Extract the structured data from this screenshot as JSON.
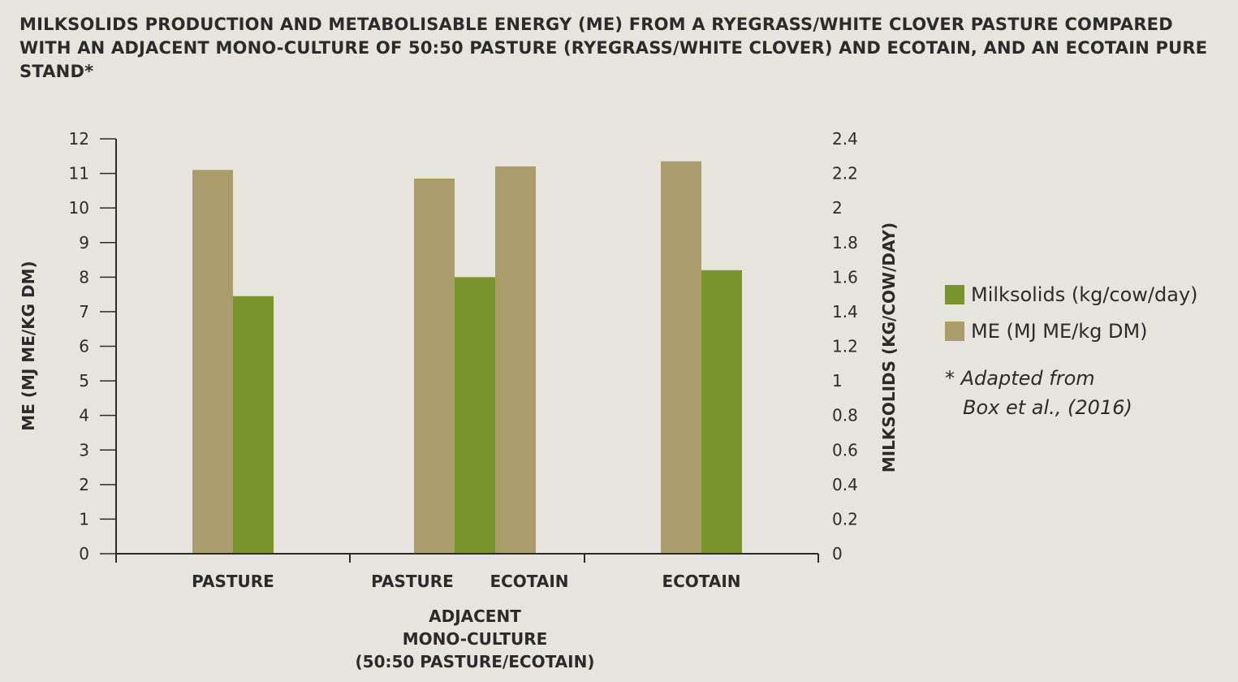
{
  "title": "MILKSOLIDS PRODUCTION AND METABOLISABLE ENERGY (ME) FROM A RYEGRASS/WHITE CLOVER PASTURE COMPARED WITH AN ADJACENT MONO-CULTURE OF 50:50 PASTURE (RYEGRASS/WHITE CLOVER) AND ECOTAIN, AND AN ECOTAIN PURE STAND*",
  "note": {
    "line1": "* Adapted from",
    "line2": "Box et al., (2016)"
  },
  "chart_data": {
    "type": "bar",
    "title": "MILKSOLIDS PRODUCTION AND METABOLISABLE ENERGY (ME) FROM A RYEGRASS/WHITE CLOVER PASTURE COMPARED WITH AN ADJACENT MONO-CULTURE OF 50:50 PASTURE (RYEGRASS/WHITE CLOVER) AND ECOTAIN, AND AN ECOTAIN PURE STAND*",
    "ylabel_left": "ME (MJ ME/KG DM)",
    "ylabel_right": "MILKSOLIDS (KG/COW/DAY)",
    "ylim_left": [
      0,
      12
    ],
    "ylim_right": [
      0,
      2.4
    ],
    "yticks_left": [
      "0",
      "1",
      "2",
      "3",
      "4",
      "5",
      "6",
      "7",
      "8",
      "9",
      "10",
      "11",
      "12"
    ],
    "yticks_right": [
      "0",
      "0.2",
      "0.4",
      "0.6",
      "0.8",
      "1",
      "1.2",
      "1.4",
      "1.6",
      "1.8",
      "2",
      "2.2",
      "2.4"
    ],
    "grid": false,
    "legend_position": "right",
    "categories": [
      "PASTURE",
      "PASTURE",
      "ECOTAIN",
      "ECOTAIN"
    ],
    "groups": [
      {
        "label_lines": [
          ""
        ],
        "categories": [
          0
        ]
      },
      {
        "label_lines": [
          "ADJACENT",
          "MONO-CULTURE",
          "(50:50 PASTURE/ECOTAIN)"
        ],
        "categories": [
          1,
          2
        ]
      },
      {
        "label_lines": [
          ""
        ],
        "categories": [
          3
        ]
      }
    ],
    "series": [
      {
        "name": "ME (MJ ME/kg DM)",
        "axis": "left",
        "color": "#ab9c6b",
        "values": [
          11.1,
          10.85,
          11.2,
          11.35
        ]
      },
      {
        "name": "Milksolids (kg/cow/day)",
        "axis": "right",
        "color": "#77952b",
        "values": [
          1.49,
          1.6,
          null,
          1.64
        ]
      }
    ],
    "legend_order": [
      "Milksolids (kg/cow/day)",
      "ME (MJ ME/kg DM)"
    ]
  }
}
